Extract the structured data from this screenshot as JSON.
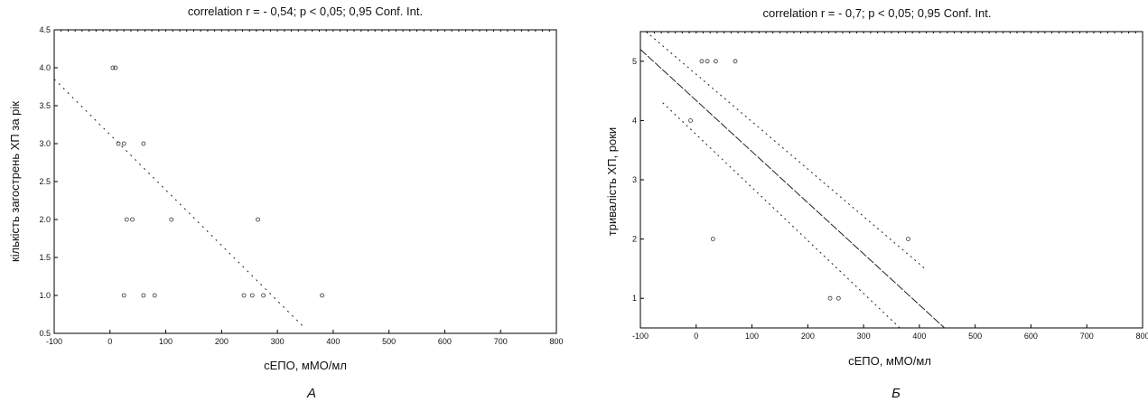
{
  "chart_data": [
    {
      "type": "scatter",
      "panel_label": "А",
      "title": "correlation r = - 0,54; p < 0,05; 0,95 Conf. Int.",
      "xlabel": "сЕПО, мМО/мл",
      "ylabel": "кількість загострень ХП за рік",
      "xlim": [
        -100,
        800
      ],
      "ylim": [
        0.5,
        4.5
      ],
      "x_ticks": [
        "-100",
        "0",
        "100",
        "200",
        "300",
        "400",
        "500",
        "600",
        "700",
        "800"
      ],
      "y_ticks": [
        "0.5",
        "1.0",
        "1.5",
        "2.0",
        "2.5",
        "3.0",
        "3.5",
        "4.0",
        "4.5"
      ],
      "grid": false,
      "points": [
        {
          "x": 5,
          "y": 4.0
        },
        {
          "x": 10,
          "y": 4.0
        },
        {
          "x": 15,
          "y": 3.0
        },
        {
          "x": 25,
          "y": 3.0
        },
        {
          "x": 60,
          "y": 3.0
        },
        {
          "x": 30,
          "y": 2.0
        },
        {
          "x": 40,
          "y": 2.0
        },
        {
          "x": 110,
          "y": 2.0
        },
        {
          "x": 265,
          "y": 2.0
        },
        {
          "x": 25,
          "y": 1.0
        },
        {
          "x": 60,
          "y": 1.0
        },
        {
          "x": 80,
          "y": 1.0
        },
        {
          "x": 240,
          "y": 1.0
        },
        {
          "x": 255,
          "y": 1.0
        },
        {
          "x": 275,
          "y": 1.0
        },
        {
          "x": 380,
          "y": 1.0
        }
      ],
      "regression": {
        "x": [
          -100,
          345
        ],
        "y": [
          3.85,
          0.6
        ]
      }
    },
    {
      "type": "scatter",
      "panel_label": "Б",
      "title": "correlation r = - 0,7; p < 0,05; 0,95 Conf. Int.",
      "xlabel": "сЕПО, мМО/мл",
      "ylabel": "тривалість ХП, роки",
      "xlim": [
        -100,
        800
      ],
      "ylim": [
        0.5,
        5.5
      ],
      "x_ticks": [
        "-100",
        "0",
        "100",
        "200",
        "300",
        "400",
        "500",
        "600",
        "700",
        "800"
      ],
      "y_ticks": [
        "1",
        "2",
        "3",
        "4",
        "5"
      ],
      "grid": false,
      "points": [
        {
          "x": 10,
          "y": 5.0
        },
        {
          "x": 20,
          "y": 5.0
        },
        {
          "x": 35,
          "y": 5.0
        },
        {
          "x": 70,
          "y": 5.0
        },
        {
          "x": -10,
          "y": 4.0
        },
        {
          "x": 30,
          "y": 2.0
        },
        {
          "x": 380,
          "y": 2.0
        },
        {
          "x": 240,
          "y": 1.0
        },
        {
          "x": 255,
          "y": 1.0
        }
      ],
      "regression": {
        "x": [
          -100,
          445
        ],
        "y": [
          5.2,
          0.5
        ]
      },
      "ci_upper": {
        "x": [
          -90,
          410
        ],
        "y": [
          5.5,
          1.5
        ]
      },
      "ci_lower": {
        "x": [
          -60,
          365
        ],
        "y": [
          4.3,
          0.5
        ]
      }
    }
  ]
}
